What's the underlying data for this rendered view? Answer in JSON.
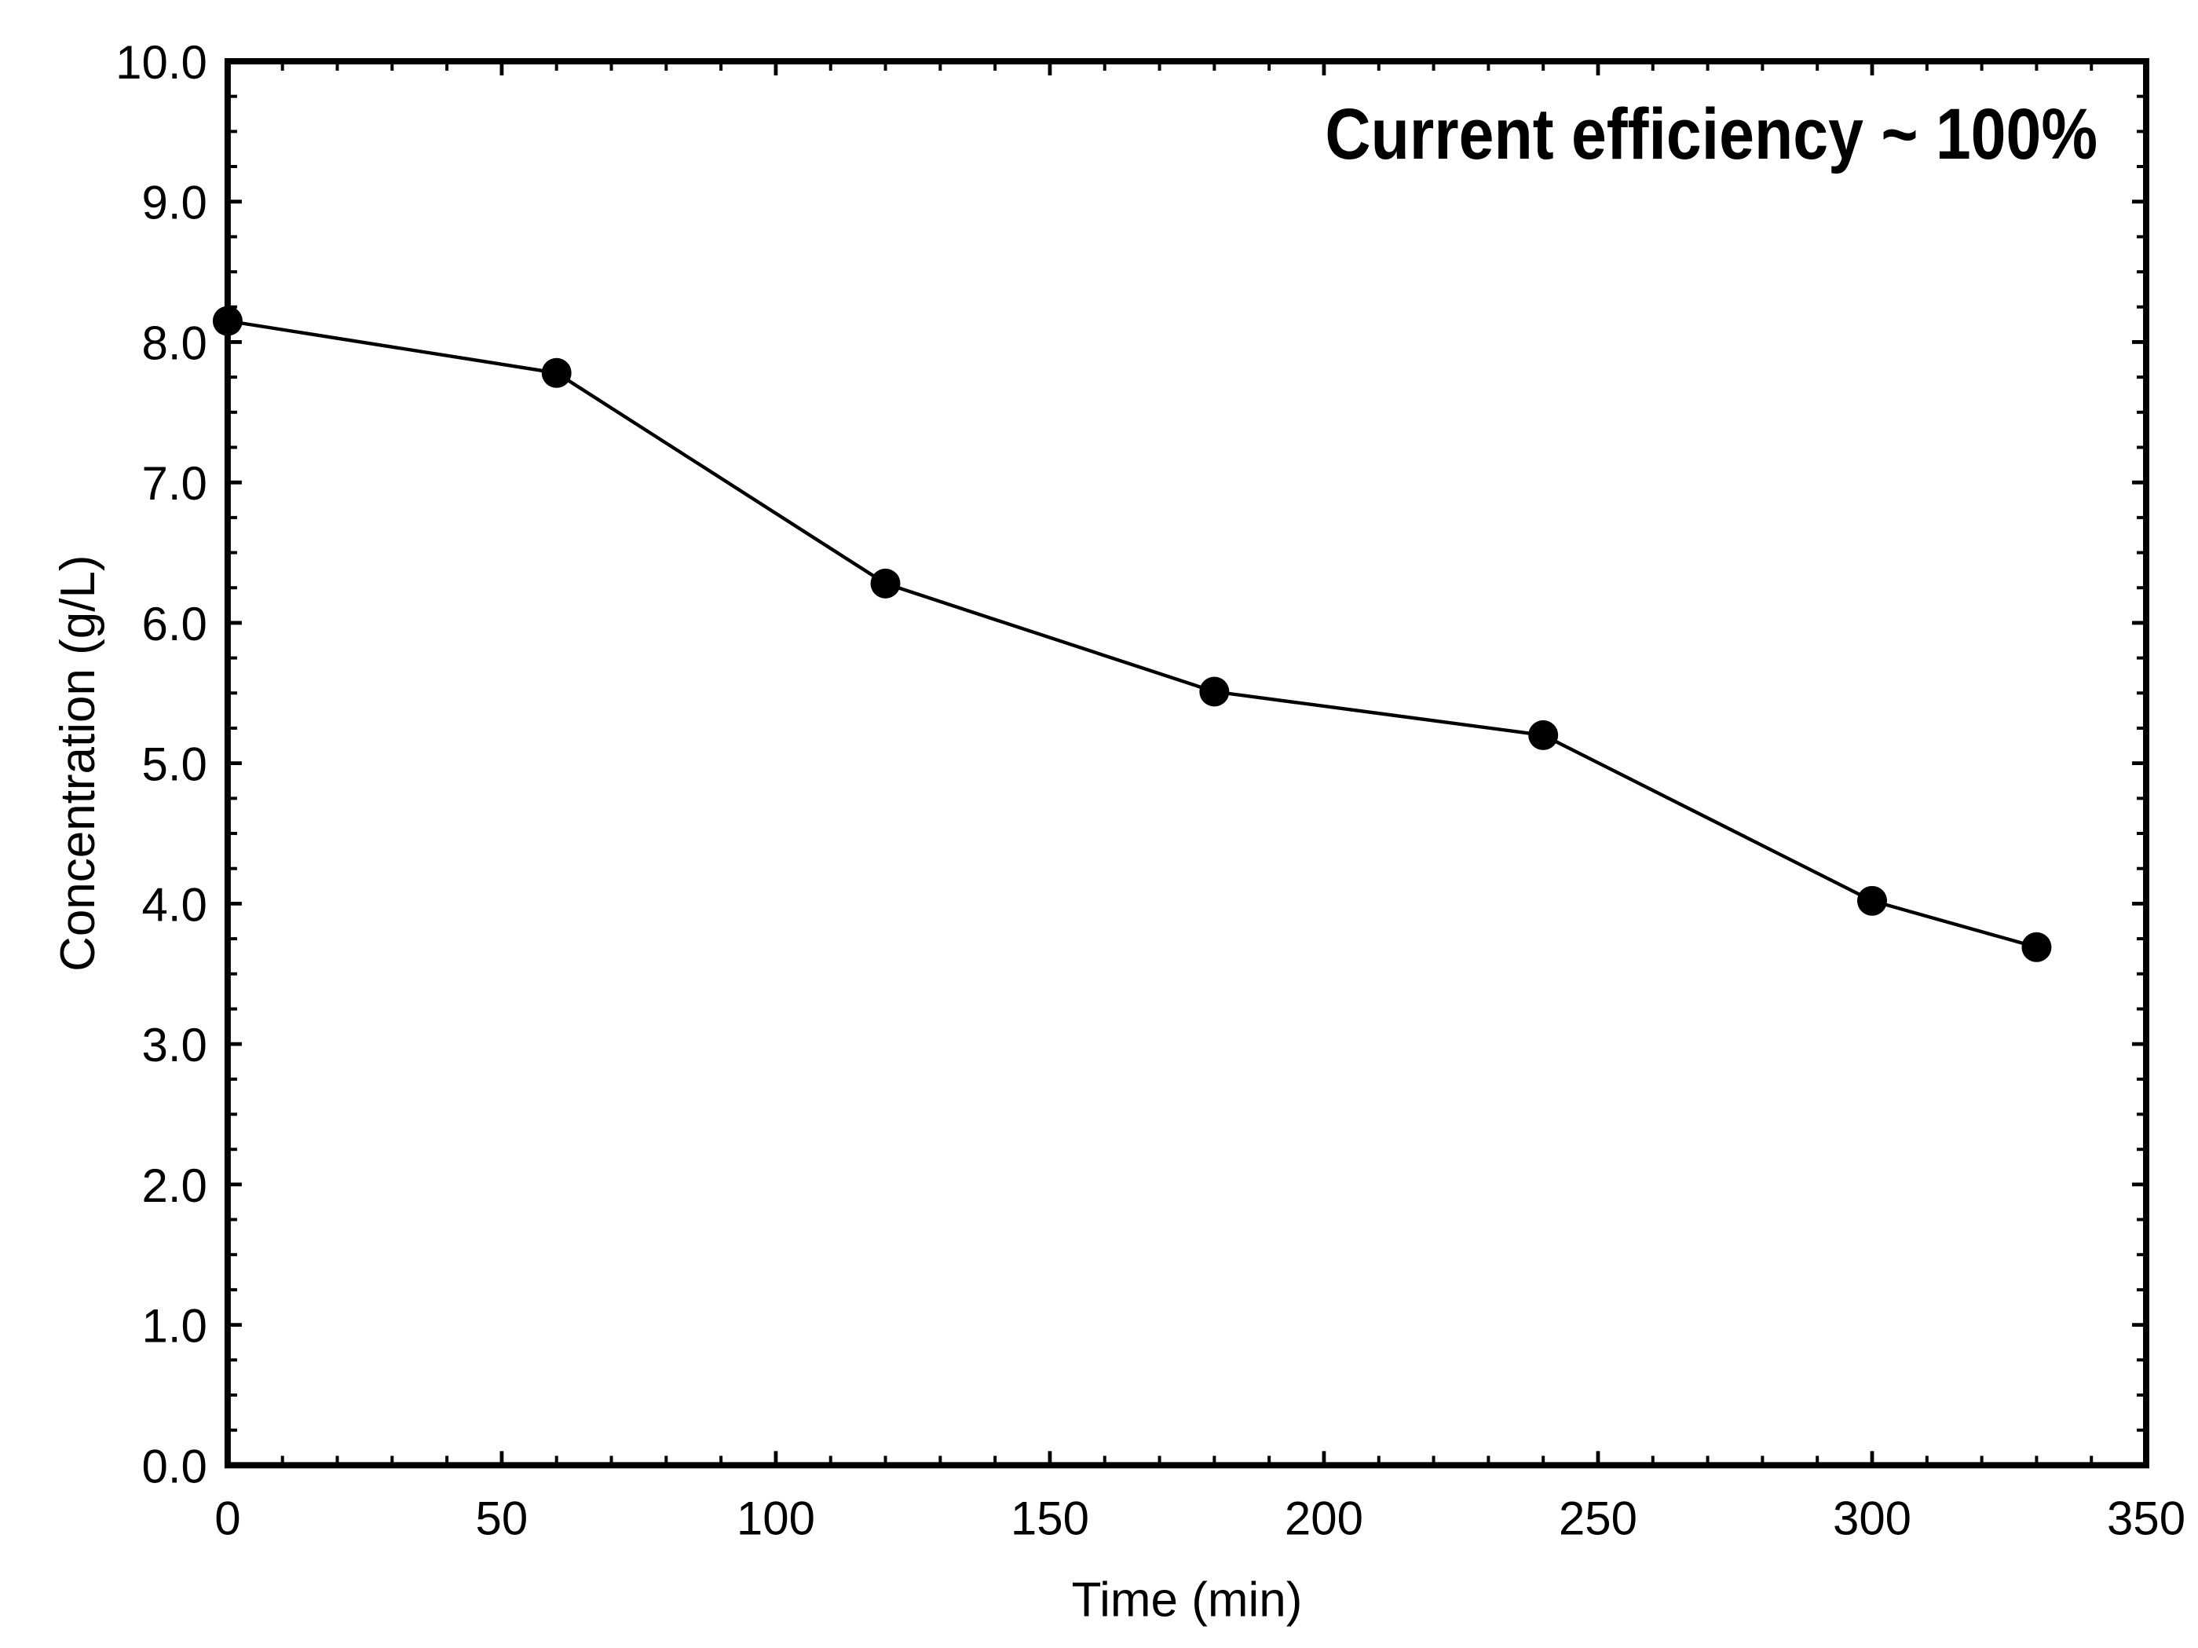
{
  "chart_data": {
    "type": "line",
    "title": "",
    "annotation": "Current efficiency ~ 100%",
    "xlabel": "Time (min)",
    "ylabel": "Concentration (g/L)",
    "xlim": [
      0,
      350
    ],
    "ylim": [
      0.0,
      10.0
    ],
    "x_ticks": {
      "major_step": 50,
      "minor_step": 10,
      "labels": [
        "0",
        "50",
        "100",
        "150",
        "200",
        "250",
        "300",
        "350"
      ]
    },
    "y_ticks": {
      "major_step": 1.0,
      "minor_step": 0.25,
      "labels": [
        "0.0",
        "1.0",
        "2.0",
        "3.0",
        "4.0",
        "5.0",
        "6.0",
        "7.0",
        "8.0",
        "9.0",
        "10.0"
      ]
    },
    "grid": "off",
    "legend": "none",
    "frame": "box-with-inward-ticks",
    "series": [
      {
        "name": "concentration",
        "marker": "filled-circle",
        "color": "#000000",
        "x": [
          0,
          60,
          120,
          180,
          240,
          300,
          330
        ],
        "y": [
          8.15,
          7.78,
          6.28,
          5.51,
          5.2,
          4.02,
          3.69
        ]
      }
    ],
    "colors": {
      "foreground": "#000000",
      "background": "#ffffff"
    }
  }
}
